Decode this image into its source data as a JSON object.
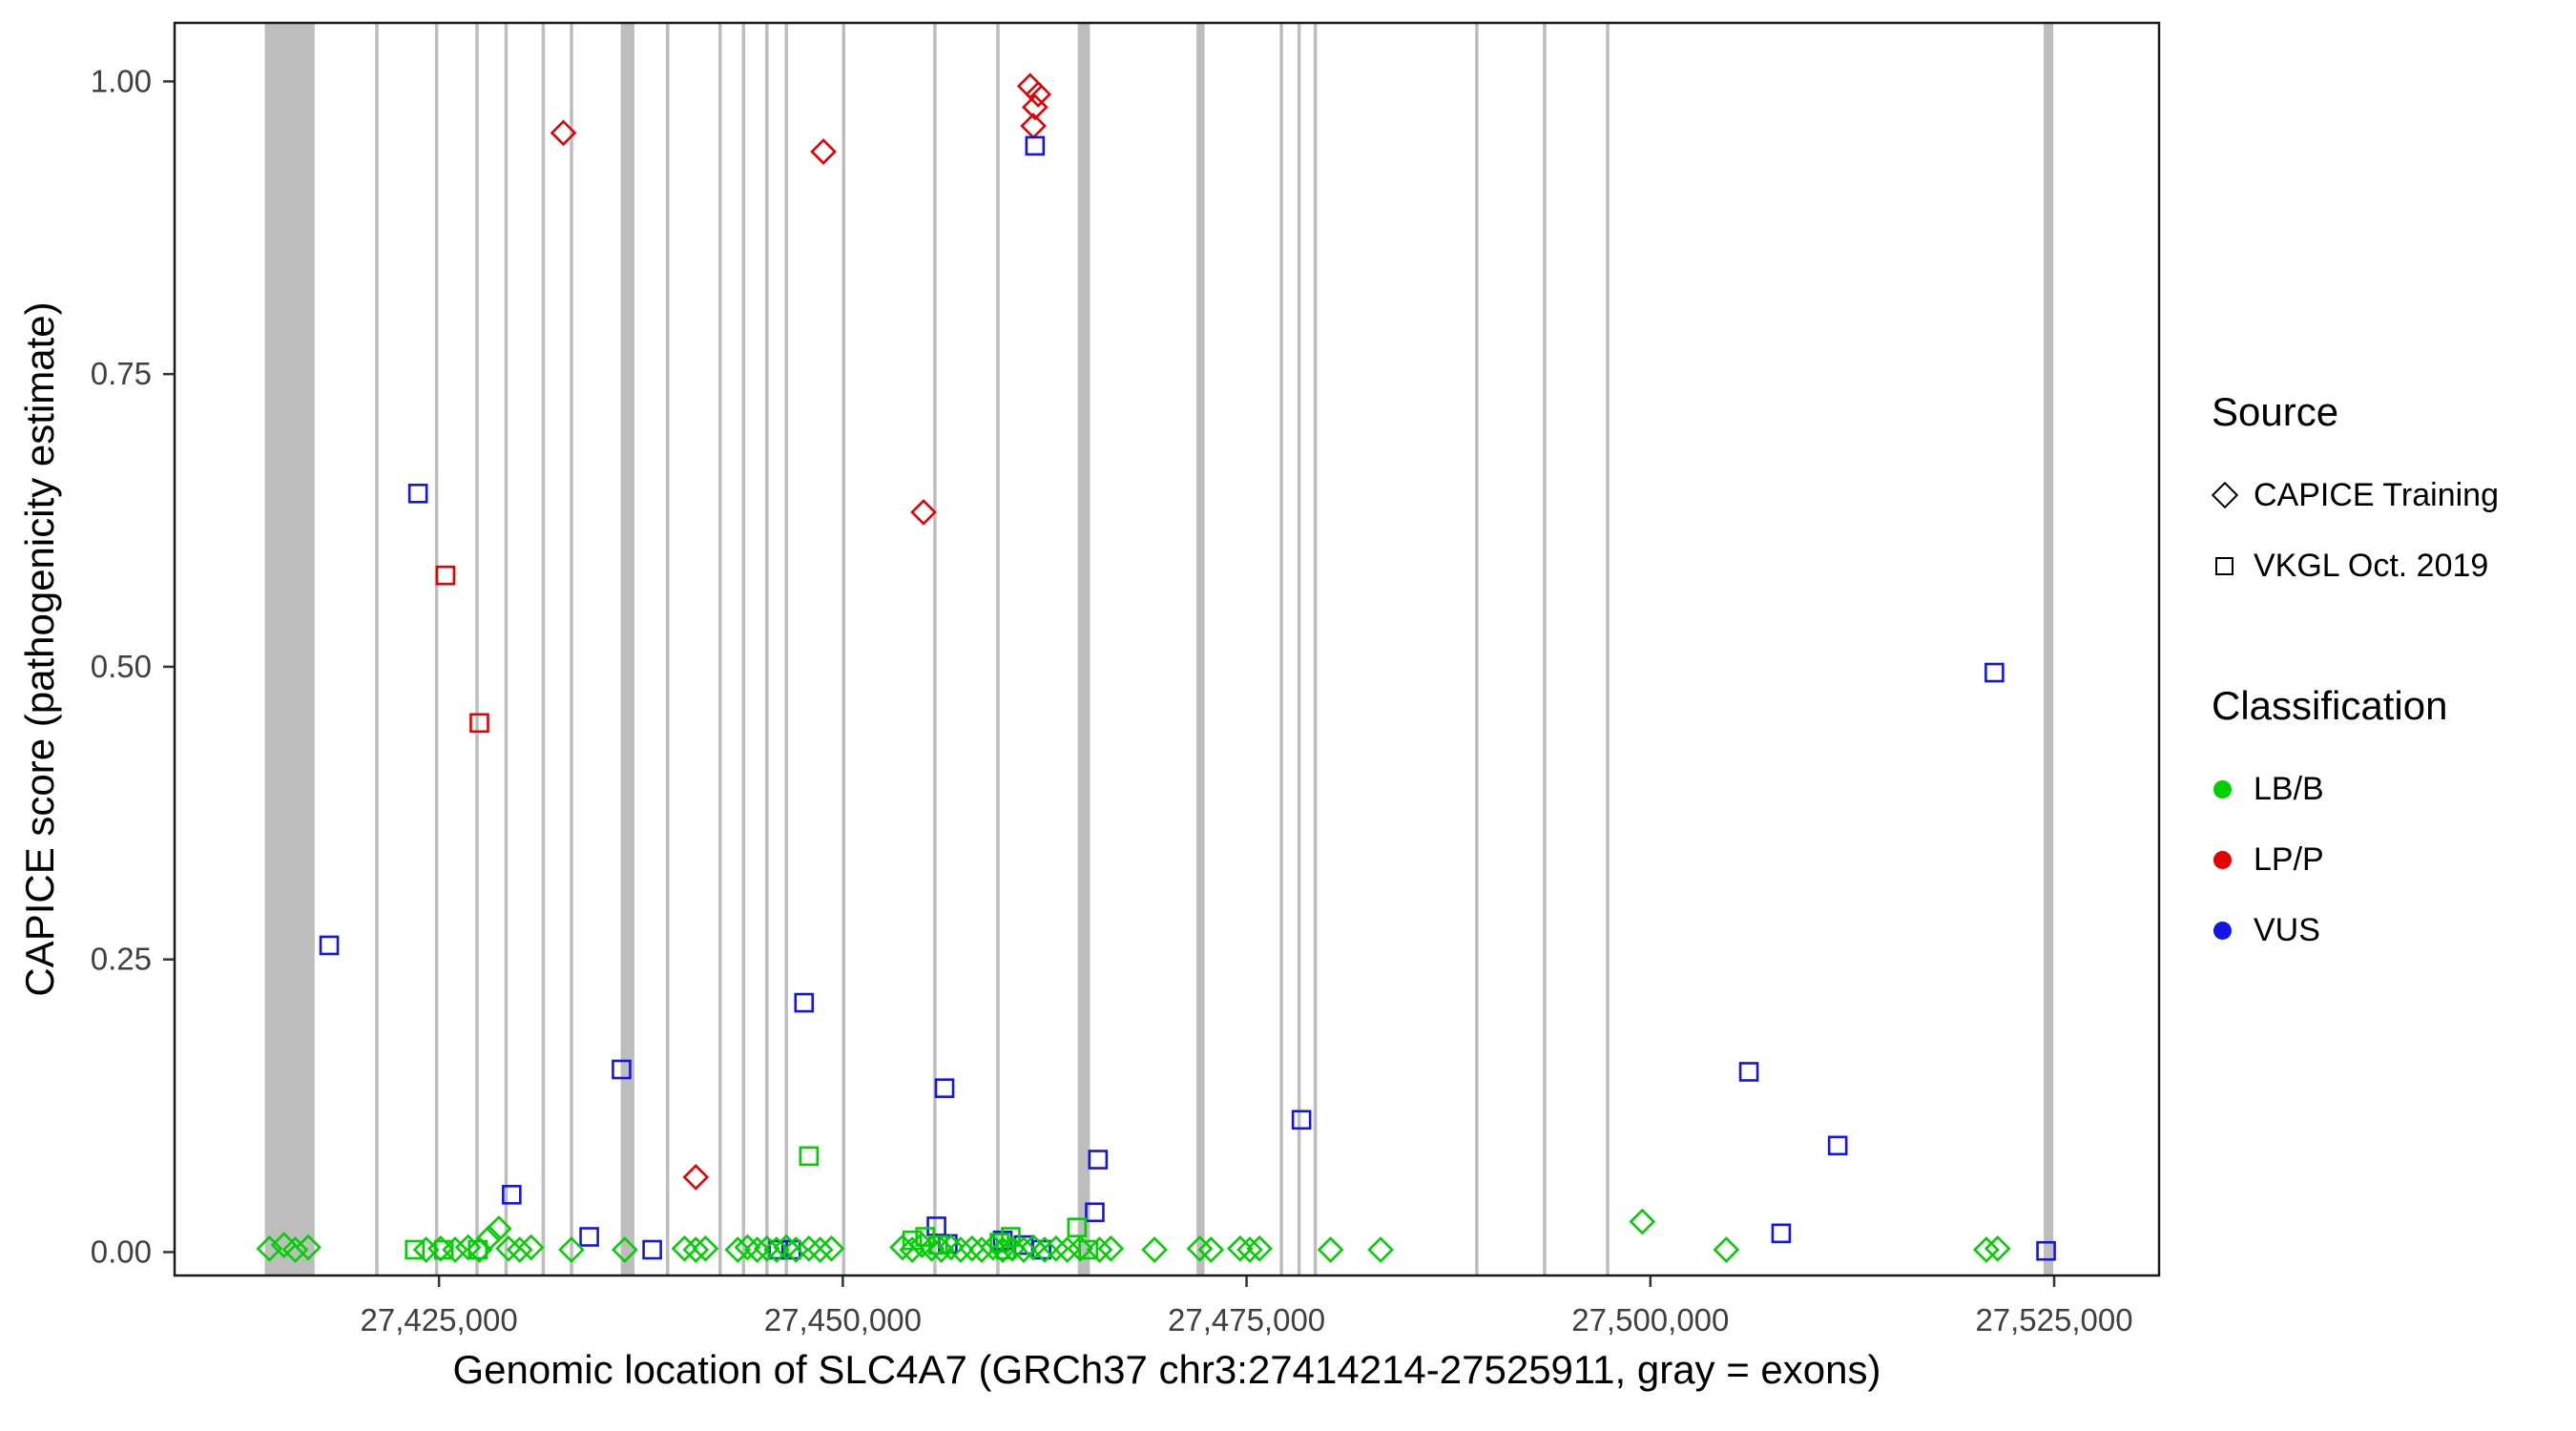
{
  "chart_data": {
    "type": "scatter",
    "xlabel": "Genomic location of SLC4A7 (GRCh37 chr3:27414214-27525911, gray = exons)",
    "ylabel": "CAPICE score (pathogenicity estimate)",
    "x_domain": [
      27408629,
      27531496
    ],
    "y_domain": [
      -0.02,
      1.05
    ],
    "x_ticks": [
      {
        "v": 27425000,
        "label": "27,425,000"
      },
      {
        "v": 27450000,
        "label": "27,450,000"
      },
      {
        "v": 27475000,
        "label": "27,475,000"
      },
      {
        "v": 27500000,
        "label": "27,500,000"
      },
      {
        "v": 27525000,
        "label": "27,525,000"
      }
    ],
    "y_ticks": [
      {
        "v": 0.0,
        "label": "0.00"
      },
      {
        "v": 0.25,
        "label": "0.25"
      },
      {
        "v": 0.5,
        "label": "0.50"
      },
      {
        "v": 0.75,
        "label": "0.75"
      },
      {
        "v": 1.0,
        "label": "1.00"
      }
    ],
    "exon_color": "#bdbdbd",
    "panel_border_color": "#1a1a1a",
    "tick_label_color": "#404040",
    "class_colors": {
      "LB": "#00d000",
      "LP": "#e60000",
      "VUS": "#1414e6"
    },
    "source_shapes": {
      "T": "diamond",
      "V": "square"
    },
    "exons": [
      [
        27414214,
        27417300
      ],
      [
        27421050,
        27421250
      ],
      [
        27424750,
        27424950
      ],
      [
        27427250,
        27427450
      ],
      [
        27429050,
        27429250
      ],
      [
        27431350,
        27431550
      ],
      [
        27433100,
        27433300
      ],
      [
        27436250,
        27437100
      ],
      [
        27439050,
        27439250
      ],
      [
        27442300,
        27442500
      ],
      [
        27443750,
        27443950
      ],
      [
        27445200,
        27445400
      ],
      [
        27446400,
        27446600
      ],
      [
        27449950,
        27450150
      ],
      [
        27455600,
        27455800
      ],
      [
        27459500,
        27459700
      ],
      [
        27464550,
        27465300
      ],
      [
        27471900,
        27472400
      ],
      [
        27477050,
        27477250
      ],
      [
        27478150,
        27478350
      ],
      [
        27479150,
        27479350
      ],
      [
        27489150,
        27489350
      ],
      [
        27493350,
        27493550
      ],
      [
        27497250,
        27497450
      ],
      [
        27524350,
        27524950
      ]
    ],
    "points": [
      [
        27432700,
        0.956,
        "T",
        "LP"
      ],
      [
        27448800,
        0.94,
        "T",
        "LP"
      ],
      [
        27461600,
        0.996,
        "T",
        "LP"
      ],
      [
        27462100,
        0.989,
        "T",
        "LP"
      ],
      [
        27461900,
        0.978,
        "T",
        "LP"
      ],
      [
        27461800,
        0.962,
        "T",
        "LP"
      ],
      [
        27455000,
        0.632,
        "T",
        "LP"
      ],
      [
        27440900,
        0.064,
        "T",
        "LP"
      ],
      [
        27425400,
        0.578,
        "V",
        "LP"
      ],
      [
        27427500,
        0.452,
        "V",
        "LP"
      ],
      [
        27423700,
        0.648,
        "V",
        "VUS"
      ],
      [
        27418200,
        0.262,
        "V",
        "VUS"
      ],
      [
        27436300,
        0.156,
        "V",
        "VUS"
      ],
      [
        27447600,
        0.213,
        "V",
        "VUS"
      ],
      [
        27456300,
        0.14,
        "V",
        "VUS"
      ],
      [
        27461900,
        0.945,
        "V",
        "VUS"
      ],
      [
        27465800,
        0.079,
        "V",
        "VUS"
      ],
      [
        27465600,
        0.034,
        "V",
        "VUS"
      ],
      [
        27478400,
        0.113,
        "V",
        "VUS"
      ],
      [
        27506100,
        0.154,
        "V",
        "VUS"
      ],
      [
        27511600,
        0.091,
        "V",
        "VUS"
      ],
      [
        27521300,
        0.495,
        "V",
        "VUS"
      ],
      [
        27508100,
        0.016,
        "V",
        "VUS"
      ],
      [
        27429500,
        0.049,
        "V",
        "VUS"
      ],
      [
        27434300,
        0.013,
        "V",
        "VUS"
      ],
      [
        27438200,
        0.002,
        "V",
        "VUS"
      ],
      [
        27446000,
        0.002,
        "V",
        "VUS"
      ],
      [
        27446800,
        0.002,
        "V",
        "VUS"
      ],
      [
        27455800,
        0.022,
        "V",
        "VUS"
      ],
      [
        27456500,
        0.007,
        "V",
        "VUS"
      ],
      [
        27459900,
        0.01,
        "V",
        "VUS"
      ],
      [
        27461200,
        0.006,
        "V",
        "VUS"
      ],
      [
        27462300,
        0.002,
        "V",
        "VUS"
      ],
      [
        27524500,
        0.001,
        "V",
        "VUS"
      ],
      [
        27423500,
        0.002,
        "V",
        "LB"
      ],
      [
        27425300,
        0.002,
        "V",
        "LB"
      ],
      [
        27427400,
        0.002,
        "V",
        "LB"
      ],
      [
        27447900,
        0.082,
        "V",
        "LB"
      ],
      [
        27454300,
        0.01,
        "V",
        "LB"
      ],
      [
        27455100,
        0.013,
        "V",
        "LB"
      ],
      [
        27455900,
        0.006,
        "V",
        "LB"
      ],
      [
        27459700,
        0.008,
        "V",
        "LB"
      ],
      [
        27460400,
        0.013,
        "V",
        "LB"
      ],
      [
        27464500,
        0.021,
        "V",
        "LB"
      ],
      [
        27465200,
        0.002,
        "V",
        "LB"
      ],
      [
        27460100,
        0.002,
        "V",
        "LB"
      ],
      [
        27414500,
        0.003,
        "T",
        "LB"
      ],
      [
        27415400,
        0.006,
        "T",
        "LB"
      ],
      [
        27416100,
        0.002,
        "T",
        "LB"
      ],
      [
        27416900,
        0.004,
        "T",
        "LB"
      ],
      [
        27424200,
        0.002,
        "T",
        "LB"
      ],
      [
        27425100,
        0.003,
        "T",
        "LB"
      ],
      [
        27426000,
        0.002,
        "T",
        "LB"
      ],
      [
        27426800,
        0.004,
        "T",
        "LB"
      ],
      [
        27427500,
        0.002,
        "T",
        "LB"
      ],
      [
        27428100,
        0.012,
        "T",
        "LB"
      ],
      [
        27428700,
        0.02,
        "T",
        "LB"
      ],
      [
        27429300,
        0.003,
        "T",
        "LB"
      ],
      [
        27430000,
        0.002,
        "T",
        "LB"
      ],
      [
        27430700,
        0.004,
        "T",
        "LB"
      ],
      [
        27433200,
        0.002,
        "T",
        "LB"
      ],
      [
        27436500,
        0.002,
        "T",
        "LB"
      ],
      [
        27440200,
        0.003,
        "T",
        "LB"
      ],
      [
        27440900,
        0.002,
        "T",
        "LB"
      ],
      [
        27441500,
        0.003,
        "T",
        "LB"
      ],
      [
        27443500,
        0.002,
        "T",
        "LB"
      ],
      [
        27444100,
        0.004,
        "T",
        "LB"
      ],
      [
        27444700,
        0.002,
        "T",
        "LB"
      ],
      [
        27445300,
        0.003,
        "T",
        "LB"
      ],
      [
        27445900,
        0.002,
        "T",
        "LB"
      ],
      [
        27446500,
        0.004,
        "T",
        "LB"
      ],
      [
        27447100,
        0.002,
        "T",
        "LB"
      ],
      [
        27447900,
        0.003,
        "T",
        "LB"
      ],
      [
        27448600,
        0.002,
        "T",
        "LB"
      ],
      [
        27449300,
        0.003,
        "T",
        "LB"
      ],
      [
        27453700,
        0.004,
        "T",
        "LB"
      ],
      [
        27454300,
        0.002,
        "T",
        "LB"
      ],
      [
        27454900,
        0.006,
        "T",
        "LB"
      ],
      [
        27455500,
        0.003,
        "T",
        "LB"
      ],
      [
        27456100,
        0.002,
        "T",
        "LB"
      ],
      [
        27456700,
        0.004,
        "T",
        "LB"
      ],
      [
        27457300,
        0.002,
        "T",
        "LB"
      ],
      [
        27458000,
        0.003,
        "T",
        "LB"
      ],
      [
        27458600,
        0.002,
        "T",
        "LB"
      ],
      [
        27459300,
        0.004,
        "T",
        "LB"
      ],
      [
        27459900,
        0.002,
        "T",
        "LB"
      ],
      [
        27460500,
        0.003,
        "T",
        "LB"
      ],
      [
        27461200,
        0.002,
        "T",
        "LB"
      ],
      [
        27461800,
        0.004,
        "T",
        "LB"
      ],
      [
        27462500,
        0.002,
        "T",
        "LB"
      ],
      [
        27463200,
        0.003,
        "T",
        "LB"
      ],
      [
        27463900,
        0.002,
        "T",
        "LB"
      ],
      [
        27464700,
        0.003,
        "T",
        "LB"
      ],
      [
        27465900,
        0.002,
        "T",
        "LB"
      ],
      [
        27466600,
        0.003,
        "T",
        "LB"
      ],
      [
        27469300,
        0.002,
        "T",
        "LB"
      ],
      [
        27472100,
        0.003,
        "T",
        "LB"
      ],
      [
        27472800,
        0.002,
        "T",
        "LB"
      ],
      [
        27474600,
        0.003,
        "T",
        "LB"
      ],
      [
        27475200,
        0.002,
        "T",
        "LB"
      ],
      [
        27475800,
        0.003,
        "T",
        "LB"
      ],
      [
        27480200,
        0.002,
        "T",
        "LB"
      ],
      [
        27483300,
        0.002,
        "T",
        "LB"
      ],
      [
        27499500,
        0.026,
        "T",
        "LB"
      ],
      [
        27504700,
        0.002,
        "T",
        "LB"
      ],
      [
        27520800,
        0.002,
        "T",
        "LB"
      ],
      [
        27521500,
        0.003,
        "T",
        "LB"
      ]
    ]
  },
  "legend": {
    "source": {
      "title": "Source",
      "items": [
        {
          "label": "CAPICE Training",
          "shape": "diamond"
        },
        {
          "label": "VKGL Oct. 2019",
          "shape": "square"
        }
      ]
    },
    "classification": {
      "title": "Classification",
      "items": [
        {
          "label": "LB/B",
          "color": "#00d000"
        },
        {
          "label": "LP/P",
          "color": "#e60000"
        },
        {
          "label": "VUS",
          "color": "#1414e6"
        }
      ]
    }
  }
}
